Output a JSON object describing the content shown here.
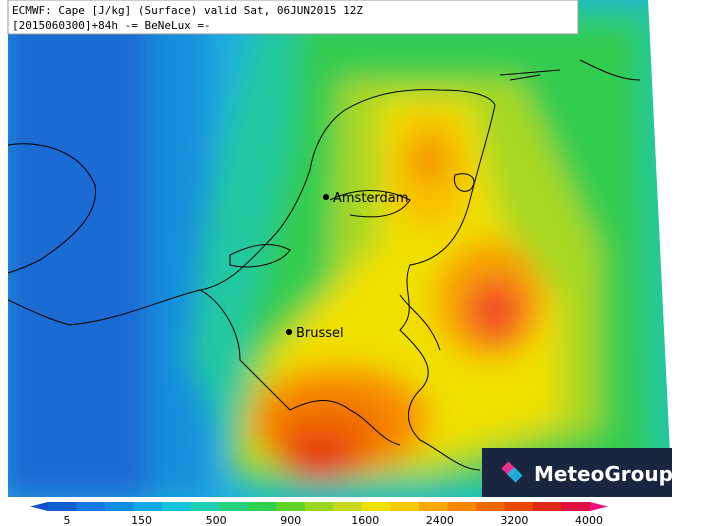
{
  "header": {
    "line1": "ECMWF: Cape [J/kg] (Surface) valid Sat, 06JUN2015 12Z",
    "line2": "[2015060300]+84h -= BeNeLux =-"
  },
  "cities": [
    {
      "label": "Amsterdam"
    },
    {
      "label": "Brussel"
    }
  ],
  "colorbar": {
    "ticks": [
      5,
      150,
      500,
      900,
      1600,
      2400,
      3200,
      4000
    ]
  },
  "logo": {
    "text": "MeteoGroup"
  }
}
